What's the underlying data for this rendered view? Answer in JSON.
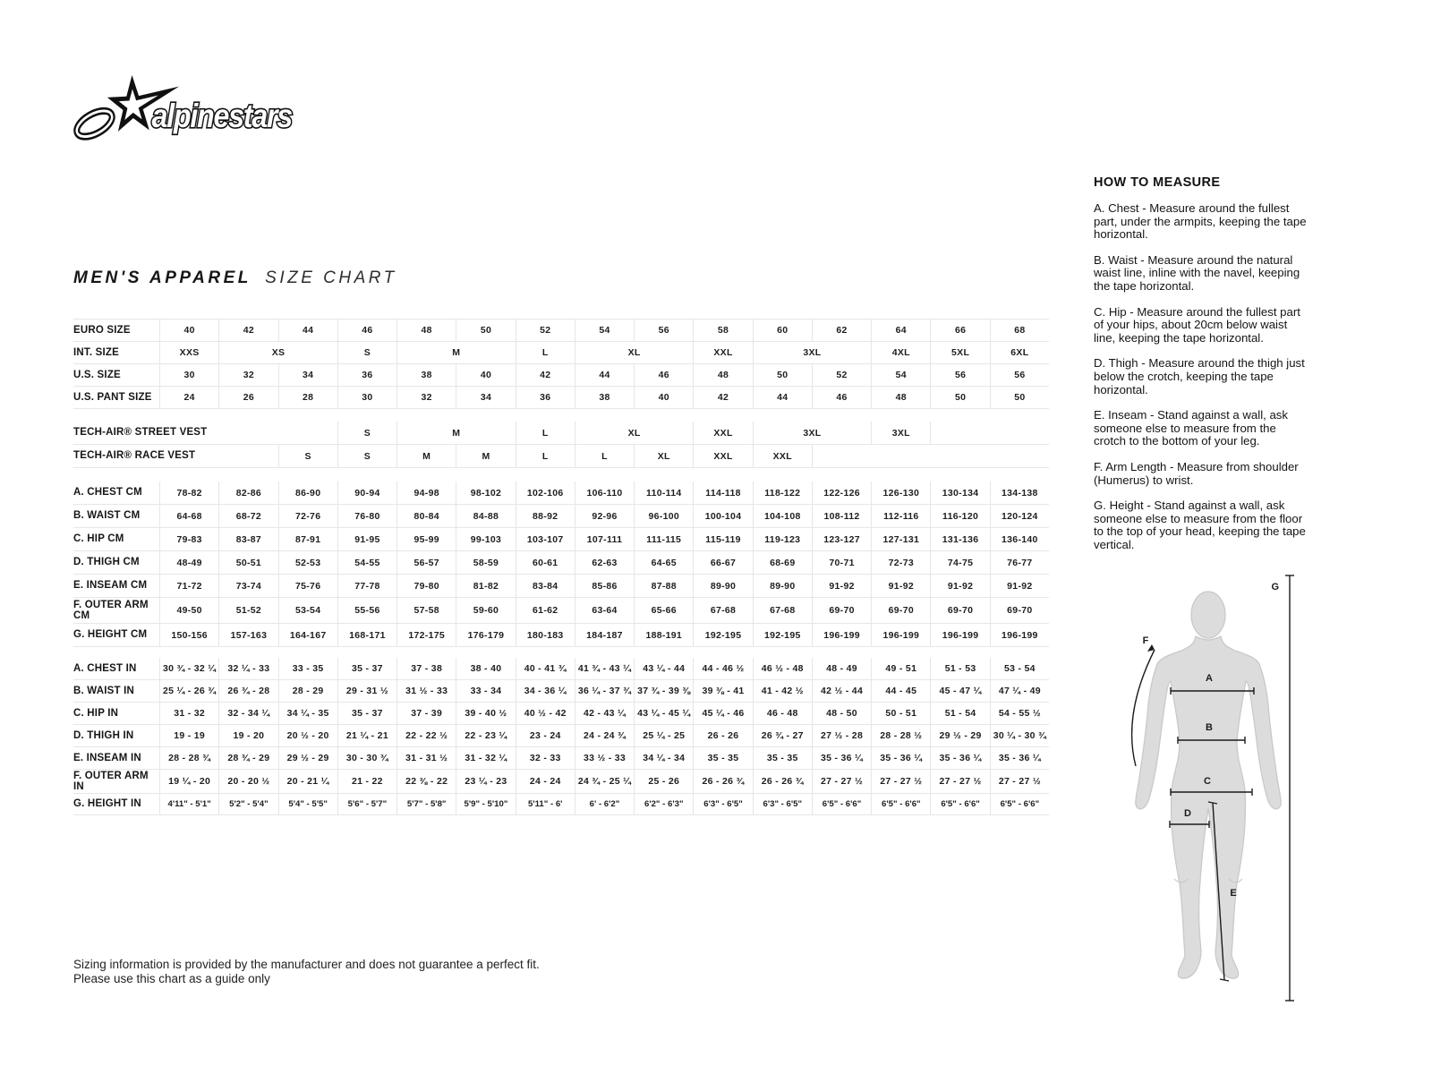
{
  "brand": {
    "logo_text": "alpinestars"
  },
  "title": {
    "primary": "MEN'S APPAREL",
    "secondary": "SIZE CHART"
  },
  "colors": {
    "text": "#1b1b1b",
    "border": "#e6e6e6",
    "silhouette-fill": "#dcdcdc",
    "silhouette-stroke": "#c9c9c9"
  },
  "size_table": {
    "rows": [
      {
        "cls": "h24",
        "label": "EURO SIZE",
        "cells": [
          "40",
          "42",
          "44",
          "46",
          "48",
          "50",
          "52",
          "54",
          "56",
          "58",
          "60",
          "62",
          "64",
          "66",
          "68"
        ]
      },
      {
        "cls": "h24",
        "label": "INT. SIZE",
        "cells": [
          {
            "t": "XXS"
          },
          {
            "t": "XS",
            "s": 2
          },
          {
            "t": "S"
          },
          {
            "t": "M",
            "s": 2
          },
          {
            "t": "L"
          },
          {
            "t": "XL",
            "s": 2
          },
          {
            "t": "XXL"
          },
          {
            "t": "3XL",
            "s": 2
          },
          {
            "t": "4XL"
          },
          {
            "t": "5XL"
          },
          {
            "t": "6XL"
          }
        ]
      },
      {
        "cls": "h24",
        "label": "U.S. SIZE",
        "cells": [
          "30",
          "32",
          "34",
          "36",
          "38",
          "40",
          "42",
          "44",
          "46",
          "48",
          "50",
          "52",
          "54",
          "56",
          "56"
        ]
      },
      {
        "cls": "h24",
        "label": "U.S. PANT SIZE",
        "cells": [
          "24",
          "26",
          "28",
          "30",
          "32",
          "34",
          "36",
          "38",
          "40",
          "42",
          "44",
          "46",
          "48",
          "50",
          "50"
        ]
      },
      {
        "gap": 14
      },
      {
        "cls": "h25",
        "nowrap": true,
        "label": "TECH-AIR® STREET VEST",
        "cells": [
          {
            "t": "",
            "s": 3
          },
          {
            "t": "S"
          },
          {
            "t": "M",
            "s": 2
          },
          {
            "t": "L"
          },
          {
            "t": "XL",
            "s": 2
          },
          {
            "t": "XXL"
          },
          {
            "t": "3XL",
            "s": 2
          },
          {
            "t": "3XL"
          },
          {
            "t": "",
            "s": 2,
            "bl": true
          }
        ]
      },
      {
        "cls": "h25",
        "nowrap": true,
        "label": "TECH-AIR® RACE VEST",
        "cells": [
          {
            "t": "",
            "s": 2
          },
          "S",
          "S",
          "M",
          "M",
          "L",
          "L",
          "XL",
          "XXL",
          "XXL",
          {
            "t": "",
            "s": 4,
            "bl": true
          }
        ]
      },
      {
        "gap": 15
      },
      {
        "cls": "h25",
        "label": "A. CHEST CM",
        "cells": [
          "78-82",
          "82-86",
          "86-90",
          "90-94",
          "94-98",
          "98-102",
          "102-106",
          "106-110",
          "110-114",
          "114-118",
          "118-122",
          "122-126",
          "126-130",
          "130-134",
          "134-138"
        ]
      },
      {
        "cls": "h25",
        "label": "B. WAIST CM",
        "cells": [
          "64-68",
          "68-72",
          "72-76",
          "76-80",
          "80-84",
          "84-88",
          "88-92",
          "92-96",
          "96-100",
          "100-104",
          "104-108",
          "108-112",
          "112-116",
          "116-120",
          "120-124"
        ]
      },
      {
        "cls": "h25",
        "label": "C. HIP CM",
        "cells": [
          "79-83",
          "83-87",
          "87-91",
          "91-95",
          "95-99",
          "99-103",
          "103-107",
          "107-111",
          "111-115",
          "115-119",
          "119-123",
          "123-127",
          "127-131",
          "131-136",
          "136-140"
        ]
      },
      {
        "cls": "h25",
        "label": "D. THIGH CM",
        "cells": [
          "48-49",
          "50-51",
          "52-53",
          "54-55",
          "56-57",
          "58-59",
          "60-61",
          "62-63",
          "64-65",
          "66-67",
          "68-69",
          "70-71",
          "72-73",
          "74-75",
          "76-77"
        ]
      },
      {
        "cls": "h25",
        "label": "E. INSEAM CM",
        "cells": [
          "71-72",
          "73-74",
          "75-76",
          "77-78",
          "79-80",
          "81-82",
          "83-84",
          "85-86",
          "87-88",
          "89-90",
          "89-90",
          "91-92",
          "91-92",
          "91-92",
          "91-92"
        ]
      },
      {
        "cls": "h28",
        "label": "F. OUTER ARM CM",
        "cells": [
          "49-50",
          "51-52",
          "53-54",
          "55-56",
          "57-58",
          "59-60",
          "61-62",
          "63-64",
          "65-66",
          "67-68",
          "67-68",
          "69-70",
          "69-70",
          "69-70",
          "69-70"
        ]
      },
      {
        "cls": "h25",
        "label": "G. HEIGHT CM",
        "cells": [
          "150-156",
          "157-163",
          "164-167",
          "168-171",
          "172-175",
          "176-179",
          "180-183",
          "184-187",
          "188-191",
          "192-195",
          "192-195",
          "196-199",
          "196-199",
          "196-199",
          "196-199"
        ]
      },
      {
        "gap": 12
      },
      {
        "cls": "h24",
        "label": "A. CHEST IN",
        "cells": [
          "30 ¾ - 32 ¼",
          "32 ¼ - 33",
          "33 - 35",
          "35 - 37",
          "37 - 38",
          "38 - 40",
          "40 - 41 ¾",
          "41 ¾ - 43 ¼",
          "43 ¼ - 44",
          "44 - 46 ½",
          "46 ½ - 48",
          "48 - 49",
          "49 - 51",
          "51 - 53",
          "53 - 54"
        ]
      },
      {
        "cls": "h24",
        "label": "B. WAIST IN",
        "cells": [
          "25 ¼ - 26 ¾",
          "26 ¾ - 28",
          "28 - 29",
          "29 - 31 ½",
          "31 ½ - 33",
          "33 - 34",
          "34 - 36 ¼",
          "36 ¼ - 37 ¾",
          "37 ¾ - 39 ⅜",
          "39 ⅜ - 41",
          "41 - 42 ½",
          "42 ½ - 44",
          "44 - 45",
          "45 - 47 ¼",
          "47 ¼ - 49"
        ]
      },
      {
        "cls": "h24",
        "label": "C. HIP IN",
        "cells": [
          "31 - 32",
          "32 - 34 ¼",
          "34 ¼ - 35",
          "35 - 37",
          "37 - 39",
          "39 - 40 ½",
          "40 ½ - 42",
          "42 - 43 ¼",
          "43 ¼ - 45 ¼",
          "45 ¼ - 46",
          "46 - 48",
          "48 - 50",
          "50 - 51",
          "51 - 54",
          "54 - 55 ½"
        ]
      },
      {
        "cls": "h24",
        "label": "D. THIGH IN",
        "cells": [
          "19 - 19",
          "19 - 20",
          "20 ½ - 20",
          "21 ¼ - 21",
          "22 - 22 ½",
          "22 - 23 ¼",
          "23 - 24",
          "24 - 24 ¾",
          "25 ¼ - 25",
          "26 - 26",
          "26 ¾ - 27",
          "27 ½ - 28",
          "28 - 28 ½",
          "29 ½ - 29",
          "30 ¼ - 30 ¾"
        ]
      },
      {
        "cls": "h24",
        "label": "E. INSEAM IN",
        "cells": [
          "28 - 28 ¾",
          "28 ¾ - 29",
          "29 ½ - 29",
          "30 - 30 ¾",
          "31 - 31 ½",
          "31 - 32 ¼",
          "32 - 33",
          "33 ½ - 33",
          "34 ¼ - 34",
          "35 - 35",
          "35 - 35",
          "35 - 36 ¼",
          "35 - 36 ¼",
          "35 - 36 ¼",
          "35 - 36 ¼"
        ]
      },
      {
        "cls": "h26",
        "label": "F. OUTER ARM IN",
        "cells": [
          "19 ¼ - 20",
          "20 - 20 ½",
          "20 - 21 ¼",
          "21 - 22",
          "22 ⅜ - 22",
          "23 ¼ - 23",
          "24 - 24",
          "24 ¾ - 25 ¼",
          "25 - 26",
          "26 - 26 ¾",
          "26 - 26 ¾",
          "27 - 27 ½",
          "27 - 27 ½",
          "27 - 27 ½",
          "27 - 27 ½"
        ]
      },
      {
        "cls": "h23",
        "label": "G. HEIGHT IN",
        "cells": [
          "4'11\" - 5'1\"",
          "5'2\" - 5'4\"",
          "5'4\" - 5'5\"",
          "5'6\" - 5'7\"",
          "5'7\" - 5'8\"",
          "5'9\" - 5'10\"",
          "5'11\" - 6'",
          "6' - 6'2\"",
          "6'2\" - 6'3\"",
          "6'3\" - 6'5\"",
          "6'3\" - 6'5\"",
          "6'5\" - 6'6\"",
          "6'5\" - 6'6\"",
          "6'5\" - 6'6\"",
          "6'5\" - 6'6\""
        ]
      }
    ]
  },
  "how_to_measure": {
    "heading": "HOW TO MEASURE",
    "items": [
      "A. Chest - Measure around the fullest part, under the armpits, keeping the tape horizontal.",
      "B. Waist - Measure around the natural waist line, inline with the navel, keeping the tape horizontal.",
      "C. Hip - Measure around the fullest part of your hips, about 20cm below waist line, keeping the tape horizontal.",
      "D. Thigh - Measure around the thigh just below the crotch, keeping the tape horizontal.",
      "E. Inseam - Stand against a wall, ask someone else to measure from the crotch to the bottom of your leg.",
      "F. Arm Length - Measure from shoulder (Humerus) to wrist.",
      "G. Height - Stand against a wall, ask someone else to measure from the floor to the top of your head, keeping the tape vertical."
    ]
  },
  "figure": {
    "labels": [
      "A",
      "B",
      "C",
      "D",
      "E",
      "F",
      "G"
    ]
  },
  "disclaimer": {
    "line1": "Sizing information is provided by the manufacturer and does not guarantee a perfect fit.",
    "line2": "Please use this chart as a guide only"
  }
}
